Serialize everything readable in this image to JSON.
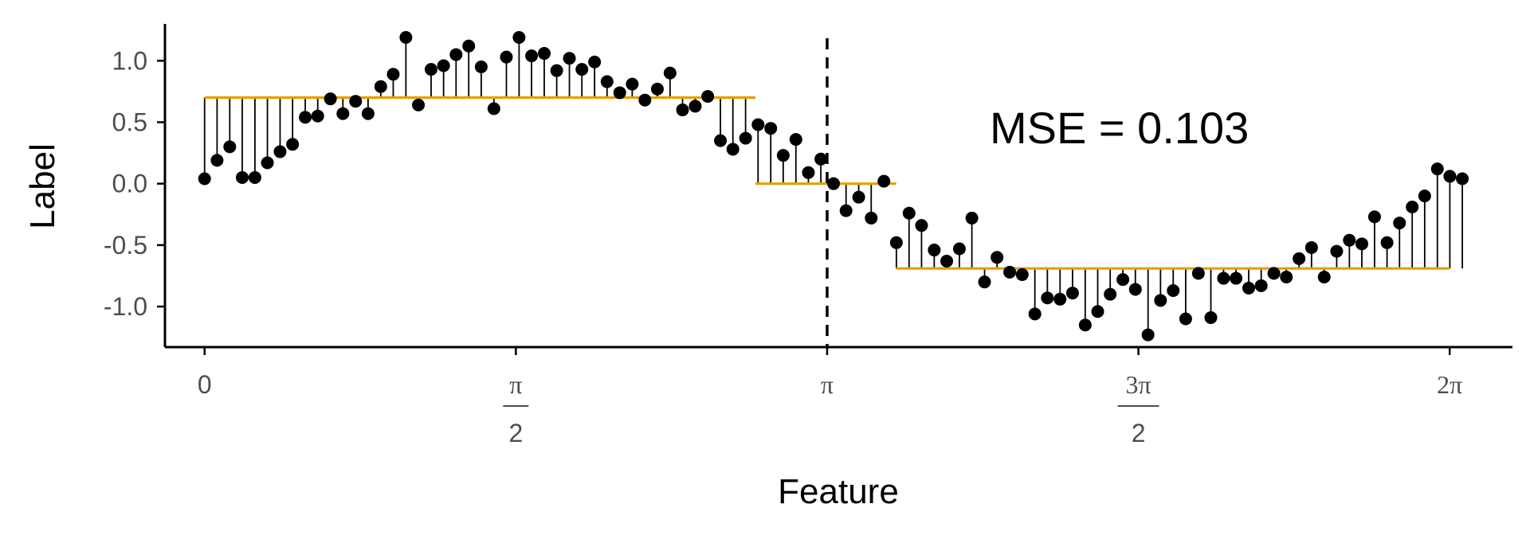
{
  "chart_data": {
    "type": "scatter",
    "title": "",
    "xlabel": "Feature",
    "ylabel": "Label",
    "xlim": [
      -0.2,
      6.6
    ],
    "ylim": [
      -1.33,
      1.3
    ],
    "grid": false,
    "legend": "none",
    "annotation": "MSE = 0.103",
    "colors": {
      "points": "#000000",
      "stems": "#000000",
      "fit": "#E69F00",
      "vline": "#000000",
      "axis": "#000000",
      "tick_text": "#4d4d4d"
    },
    "y_ticks": [
      {
        "value": 1.0,
        "label": "1.0"
      },
      {
        "value": 0.5,
        "label": "0.5"
      },
      {
        "value": 0.0,
        "label": "0.0"
      },
      {
        "value": -0.5,
        "label": "-0.5"
      },
      {
        "value": -1.0,
        "label": "-1.0"
      }
    ],
    "x_ticks": [
      {
        "value": 0,
        "num": "0",
        "den": ""
      },
      {
        "value": 1.5708,
        "num": "π",
        "den": "2"
      },
      {
        "value": 3.1416,
        "num": "π",
        "den": ""
      },
      {
        "value": 4.7124,
        "num": "3π",
        "den": "2"
      },
      {
        "value": 6.2832,
        "num": "2π",
        "den": ""
      }
    ],
    "vline_x": 3.1416,
    "fit_segments": [
      {
        "x0": 0.0,
        "x1": 2.78,
        "y": 0.7
      },
      {
        "x0": 2.78,
        "x1": 3.49,
        "y": 0.0
      },
      {
        "x0": 3.49,
        "x1": 6.2832,
        "y": -0.69
      }
    ],
    "points": [
      [
        0.0,
        0.04
      ],
      [
        0.063,
        0.19
      ],
      [
        0.127,
        0.3
      ],
      [
        0.19,
        0.05
      ],
      [
        0.254,
        0.05
      ],
      [
        0.317,
        0.17
      ],
      [
        0.381,
        0.26
      ],
      [
        0.444,
        0.32
      ],
      [
        0.508,
        0.54
      ],
      [
        0.571,
        0.55
      ],
      [
        0.635,
        0.69
      ],
      [
        0.698,
        0.57
      ],
      [
        0.762,
        0.67
      ],
      [
        0.825,
        0.57
      ],
      [
        0.889,
        0.79
      ],
      [
        0.952,
        0.89
      ],
      [
        1.016,
        1.19
      ],
      [
        1.079,
        0.64
      ],
      [
        1.143,
        0.93
      ],
      [
        1.206,
        0.96
      ],
      [
        1.269,
        1.05
      ],
      [
        1.333,
        1.12
      ],
      [
        1.396,
        0.95
      ],
      [
        1.46,
        0.61
      ],
      [
        1.523,
        1.03
      ],
      [
        1.587,
        1.19
      ],
      [
        1.65,
        1.04
      ],
      [
        1.714,
        1.06
      ],
      [
        1.777,
        0.92
      ],
      [
        1.841,
        1.02
      ],
      [
        1.904,
        0.93
      ],
      [
        1.968,
        0.99
      ],
      [
        2.031,
        0.83
      ],
      [
        2.095,
        0.74
      ],
      [
        2.158,
        0.81
      ],
      [
        2.222,
        0.68
      ],
      [
        2.285,
        0.77
      ],
      [
        2.349,
        0.9
      ],
      [
        2.412,
        0.6
      ],
      [
        2.476,
        0.63
      ],
      [
        2.539,
        0.71
      ],
      [
        2.603,
        0.35
      ],
      [
        2.666,
        0.28
      ],
      [
        2.73,
        0.37
      ],
      [
        2.793,
        0.48
      ],
      [
        2.857,
        0.45
      ],
      [
        2.92,
        0.23
      ],
      [
        2.984,
        0.36
      ],
      [
        3.047,
        0.09
      ],
      [
        3.11,
        0.2
      ],
      [
        3.174,
        0.0
      ],
      [
        3.237,
        -0.22
      ],
      [
        3.301,
        -0.11
      ],
      [
        3.364,
        -0.28
      ],
      [
        3.428,
        0.02
      ],
      [
        3.491,
        -0.48
      ],
      [
        3.555,
        -0.24
      ],
      [
        3.618,
        -0.34
      ],
      [
        3.682,
        -0.54
      ],
      [
        3.745,
        -0.63
      ],
      [
        3.809,
        -0.53
      ],
      [
        3.872,
        -0.28
      ],
      [
        3.936,
        -0.8
      ],
      [
        3.999,
        -0.6
      ],
      [
        4.063,
        -0.72
      ],
      [
        4.126,
        -0.74
      ],
      [
        4.19,
        -1.06
      ],
      [
        4.253,
        -0.93
      ],
      [
        4.317,
        -0.94
      ],
      [
        4.38,
        -0.89
      ],
      [
        4.444,
        -1.15
      ],
      [
        4.507,
        -1.04
      ],
      [
        4.57,
        -0.9
      ],
      [
        4.634,
        -0.78
      ],
      [
        4.697,
        -0.86
      ],
      [
        4.761,
        -1.23
      ],
      [
        4.824,
        -0.95
      ],
      [
        4.888,
        -0.87
      ],
      [
        4.951,
        -1.1
      ],
      [
        5.015,
        -0.73
      ],
      [
        5.078,
        -1.09
      ],
      [
        5.142,
        -0.77
      ],
      [
        5.205,
        -0.77
      ],
      [
        5.269,
        -0.85
      ],
      [
        5.332,
        -0.83
      ],
      [
        5.396,
        -0.73
      ],
      [
        5.459,
        -0.76
      ],
      [
        5.523,
        -0.61
      ],
      [
        5.586,
        -0.52
      ],
      [
        5.65,
        -0.76
      ],
      [
        5.713,
        -0.55
      ],
      [
        5.777,
        -0.46
      ],
      [
        5.84,
        -0.49
      ],
      [
        5.904,
        -0.27
      ],
      [
        5.967,
        -0.48
      ],
      [
        6.03,
        -0.32
      ],
      [
        6.094,
        -0.19
      ],
      [
        6.157,
        -0.1
      ],
      [
        6.221,
        0.12
      ],
      [
        6.284,
        0.06
      ],
      [
        6.347,
        0.04
      ]
    ]
  }
}
